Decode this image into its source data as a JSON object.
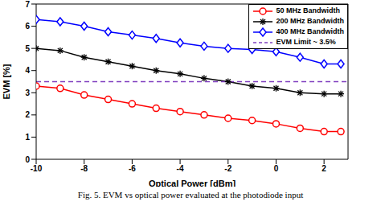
{
  "chart_data": {
    "type": "line",
    "title": "Fig. 5. EVM vs optical power evaluated at the photodiode input",
    "x_label": "Optical Power [dBm]",
    "y_label": "EVM [%]",
    "xlim": [
      -10,
      3
    ],
    "xticks": [
      -10,
      -8,
      -6,
      -4,
      -2,
      0,
      2
    ],
    "ylim": [
      0,
      7
    ],
    "yticks": [
      0,
      1,
      2,
      3,
      4,
      5,
      6,
      7
    ],
    "grid": false,
    "legend": "upper right",
    "x": [
      -10,
      -9,
      -8,
      -7,
      -6,
      -5,
      -4,
      -3,
      -2,
      -1,
      0,
      1,
      2,
      2.7
    ],
    "series": [
      {
        "name": "50 MHz Bandwidth",
        "color": "#ff0000",
        "marker": "circle",
        "line_style": "solid",
        "values": [
          3.3,
          3.2,
          2.9,
          2.7,
          2.5,
          2.3,
          2.15,
          2.0,
          1.85,
          1.75,
          1.6,
          1.4,
          1.25,
          1.25
        ]
      },
      {
        "name": "200 MHz Bandwidth",
        "color": "#000000",
        "marker": "star",
        "line_style": "solid",
        "values": [
          5.0,
          4.9,
          4.6,
          4.4,
          4.2,
          4.0,
          3.85,
          3.65,
          3.5,
          3.3,
          3.2,
          3.0,
          2.95,
          2.95
        ]
      },
      {
        "name": "400 MHz Bandwidth",
        "color": "#0000ff",
        "marker": "diamond",
        "line_style": "solid",
        "values": [
          6.3,
          6.2,
          6.0,
          5.75,
          5.6,
          5.45,
          5.25,
          5.1,
          5.0,
          4.95,
          4.85,
          4.6,
          4.3,
          4.3
        ]
      },
      {
        "name": "EVM Limit ~ 3.5%",
        "color": "#7f3fbf",
        "marker": "none",
        "line_style": "dashed",
        "x": [
          -10,
          3
        ],
        "values": [
          3.5,
          3.5
        ]
      }
    ]
  }
}
